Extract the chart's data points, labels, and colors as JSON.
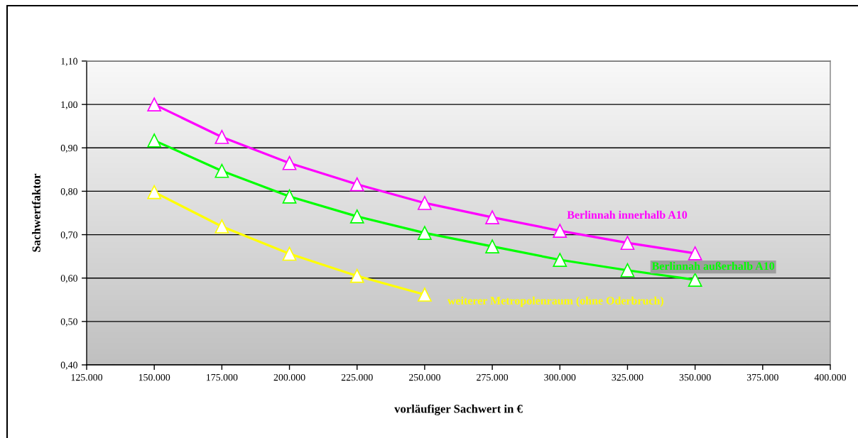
{
  "chart_data": {
    "type": "line",
    "xlabel": "vorläufiger Sachwert in €",
    "ylabel": "Sachwertfaktor",
    "x": [
      150000,
      175000,
      200000,
      225000,
      250000,
      275000,
      300000,
      325000,
      350000
    ],
    "series": [
      {
        "name": "Berlinnah innerhalb A10",
        "color": "#ff00ff",
        "values": [
          1.0,
          0.925,
          0.865,
          0.816,
          0.773,
          0.74,
          0.709,
          0.681,
          0.657
        ]
      },
      {
        "name": "Berlinnah außerhalb A10",
        "color": "#00ff00",
        "values": [
          0.917,
          0.847,
          0.788,
          0.742,
          0.704,
          0.673,
          0.642,
          0.618,
          0.596
        ]
      },
      {
        "name": "weiterer Metropolenraum (ohne Oderbruch)",
        "color": "#ffff00",
        "x": [
          150000,
          175000,
          200000,
          225000,
          250000
        ],
        "values": [
          0.798,
          0.719,
          0.656,
          0.605,
          0.562
        ]
      }
    ],
    "xlim": [
      125000,
      400000
    ],
    "xticks": [
      {
        "value": 125000,
        "label": "125.000"
      },
      {
        "value": 150000,
        "label": "150.000"
      },
      {
        "value": 175000,
        "label": "175.000"
      },
      {
        "value": 200000,
        "label": "200.000"
      },
      {
        "value": 225000,
        "label": "225.000"
      },
      {
        "value": 250000,
        "label": "250.000"
      },
      {
        "value": 275000,
        "label": "275.000"
      },
      {
        "value": 300000,
        "label": "300.000"
      },
      {
        "value": 325000,
        "label": "325.000"
      },
      {
        "value": 350000,
        "label": "350.000"
      },
      {
        "value": 375000,
        "label": "375.000"
      },
      {
        "value": 400000,
        "label": "400.000"
      }
    ],
    "ylim": [
      0.4,
      1.1
    ],
    "yticks": [
      {
        "value": 0.4,
        "label": "0,40"
      },
      {
        "value": 0.5,
        "label": "0,50"
      },
      {
        "value": 0.6,
        "label": "0,60"
      },
      {
        "value": 0.7,
        "label": "0,70"
      },
      {
        "value": 0.8,
        "label": "0,80"
      },
      {
        "value": 0.9,
        "label": "0,90"
      },
      {
        "value": 1.0,
        "label": "1,00"
      },
      {
        "value": 1.1,
        "label": "1,10"
      }
    ],
    "grid": "y",
    "marker": "triangle",
    "line_style": "solid"
  }
}
